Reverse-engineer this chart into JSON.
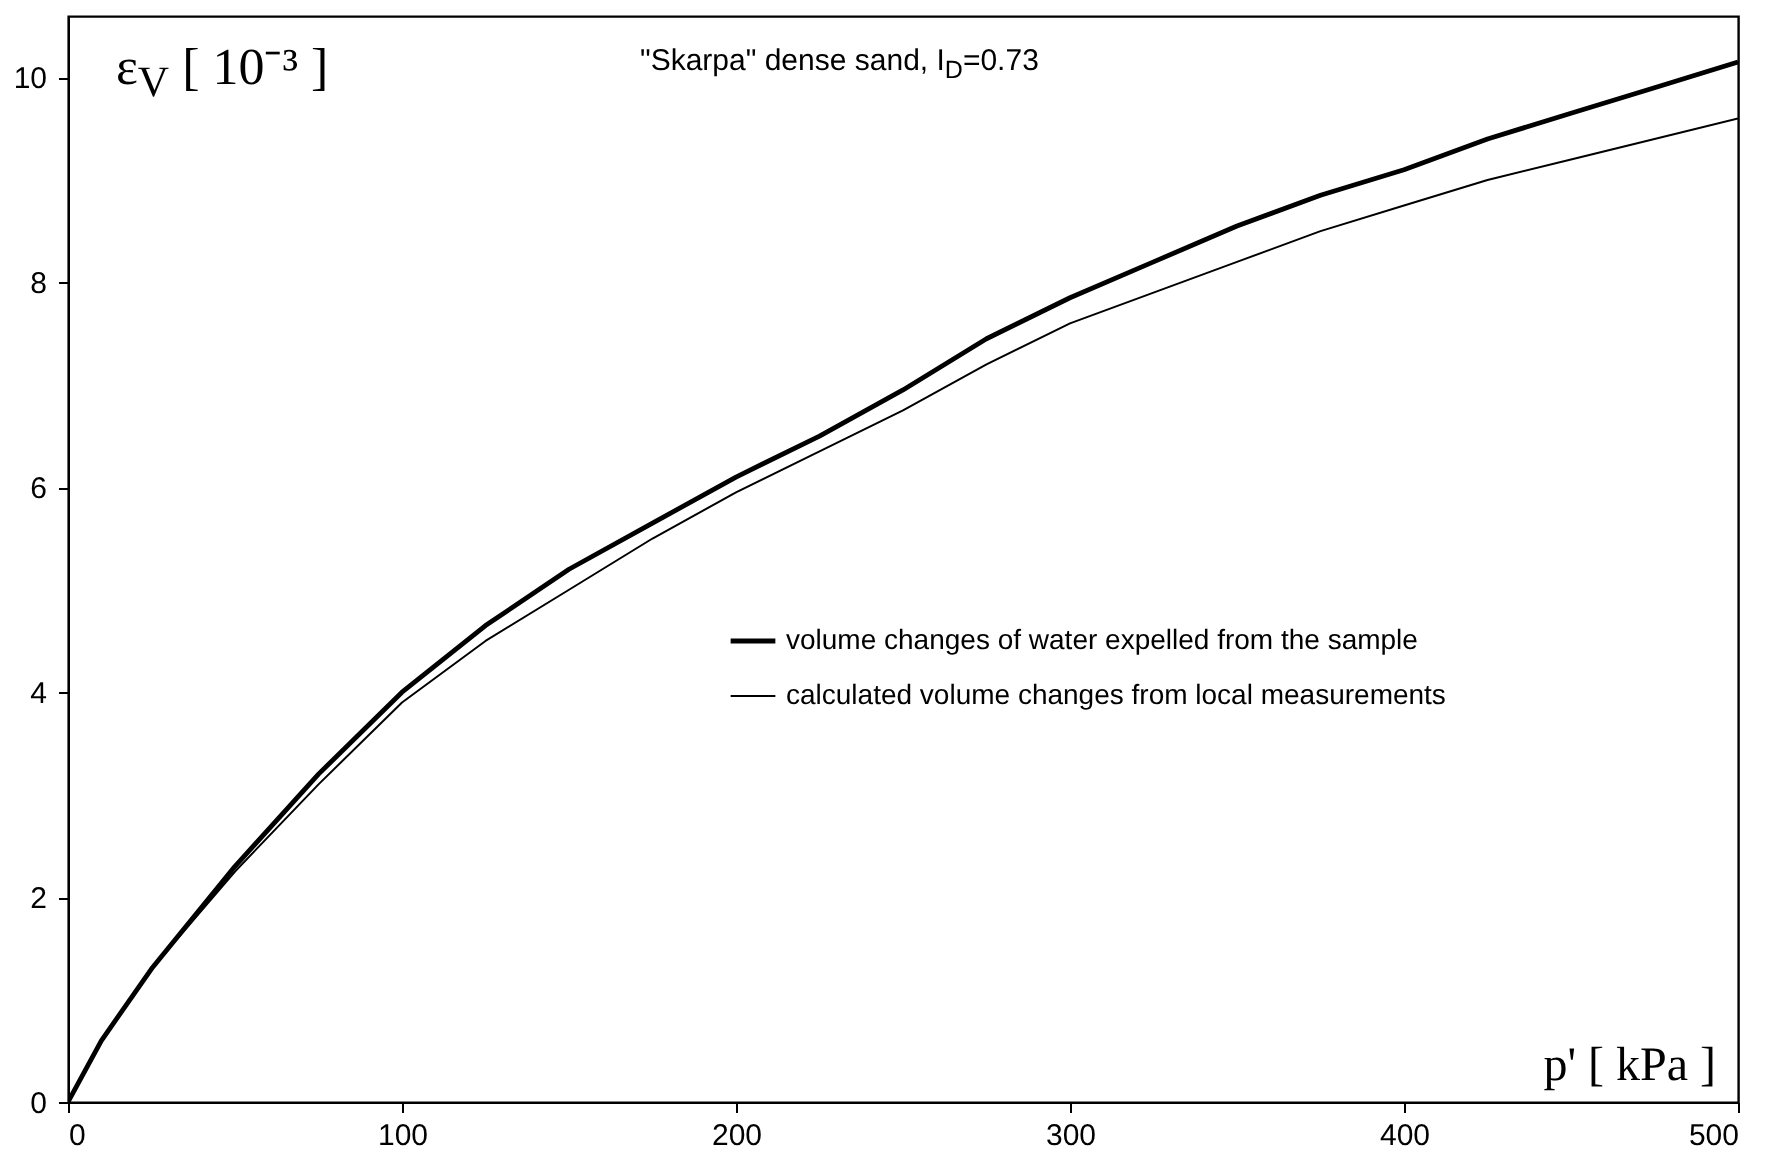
{
  "chart_data": {
    "type": "line",
    "title": "\"Skarpa\" dense sand, I$_{D}$=0.73",
    "xlabel": "p' [ kPa ]",
    "ylabel": "ε$_{V}$ [ 10⁻³ ]",
    "xlim": [
      0,
      500
    ],
    "ylim": [
      0,
      10.6
    ],
    "xticks": [
      0,
      100,
      200,
      300,
      400,
      500
    ],
    "yticks": [
      0,
      2,
      4,
      6,
      8,
      10
    ],
    "grid": false,
    "legend": "right",
    "marker": "none",
    "line_style": "solid",
    "x": [
      0,
      10,
      25,
      50,
      75,
      100,
      125,
      150,
      175,
      200,
      225,
      250,
      275,
      300,
      325,
      350,
      375,
      400,
      425,
      450,
      475,
      500
    ],
    "series": [
      {
        "name": "volume changes of water expelled from the sample",
        "color": "#000000",
        "values": [
          0,
          0.6,
          1.3,
          2.3,
          3.2,
          4.0,
          4.65,
          5.2,
          5.65,
          6.1,
          6.5,
          6.95,
          7.45,
          7.85,
          8.2,
          8.55,
          8.85,
          9.1,
          9.4,
          9.65,
          9.9,
          10.15
        ]
      },
      {
        "name": "calculated volume changes from local measurements",
        "color": "#000000",
        "values": [
          0,
          0.6,
          1.3,
          2.25,
          3.1,
          3.9,
          4.5,
          5.0,
          5.5,
          5.95,
          6.35,
          6.75,
          7.2,
          7.6,
          7.9,
          8.2,
          8.5,
          8.75,
          9.0,
          9.2,
          9.4,
          9.6
        ]
      }
    ]
  }
}
